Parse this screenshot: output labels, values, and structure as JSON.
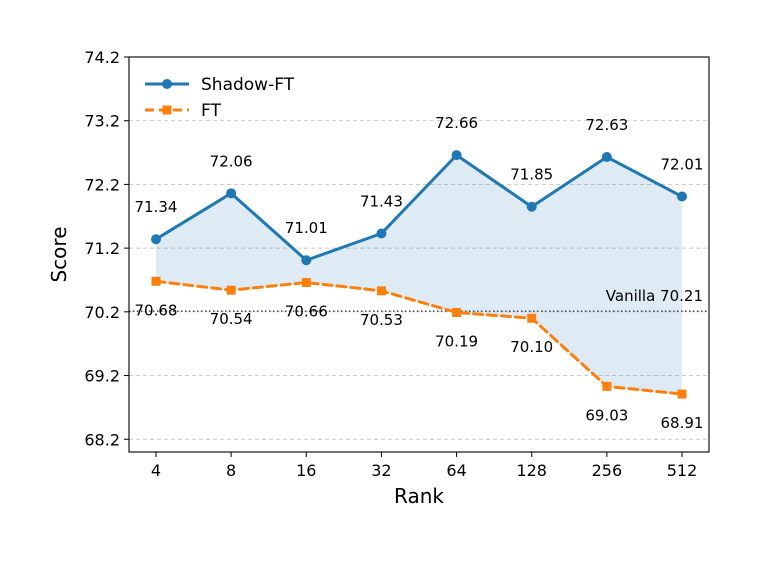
{
  "chart_data": {
    "type": "line",
    "xlabel": "Rank",
    "ylabel": "Score",
    "categories": [
      "4",
      "8",
      "16",
      "32",
      "64",
      "128",
      "256",
      "512"
    ],
    "ylim": [
      68.0,
      74.2
    ],
    "yticks": [
      68.2,
      69.2,
      70.2,
      71.2,
      72.2,
      73.2,
      74.2
    ],
    "ytick_labels": [
      "68.2",
      "69.2",
      "70.2",
      "71.2",
      "72.2",
      "73.2",
      "74.2"
    ],
    "grid": "horizontal dashed",
    "legend_position": "top-left",
    "series": [
      {
        "name": "Shadow-FT",
        "values": [
          71.34,
          72.06,
          71.01,
          71.43,
          72.66,
          71.85,
          72.63,
          72.01
        ],
        "labels": [
          "71.34",
          "72.06",
          "71.01",
          "71.43",
          "72.66",
          "71.85",
          "72.63",
          "72.01"
        ],
        "color": "#1f77b4",
        "line_style": "solid",
        "marker": "circle",
        "label_position": "above"
      },
      {
        "name": "FT",
        "values": [
          70.68,
          70.54,
          70.66,
          70.53,
          70.19,
          70.1,
          69.03,
          68.91
        ],
        "labels": [
          "70.68",
          "70.54",
          "70.66",
          "70.53",
          "70.19",
          "70.10",
          "69.03",
          "68.91"
        ],
        "color": "#ff7f0e",
        "line_style": "dashed",
        "marker": "square",
        "label_position": "below"
      }
    ],
    "reference_line": {
      "label": "Vanilla 70.21",
      "value": 70.21,
      "color": "#555555",
      "line_style": "dotted"
    },
    "fill_between": {
      "series": [
        "Shadow-FT",
        "FT"
      ],
      "color": "#1f77b4",
      "opacity": 0.15
    }
  }
}
